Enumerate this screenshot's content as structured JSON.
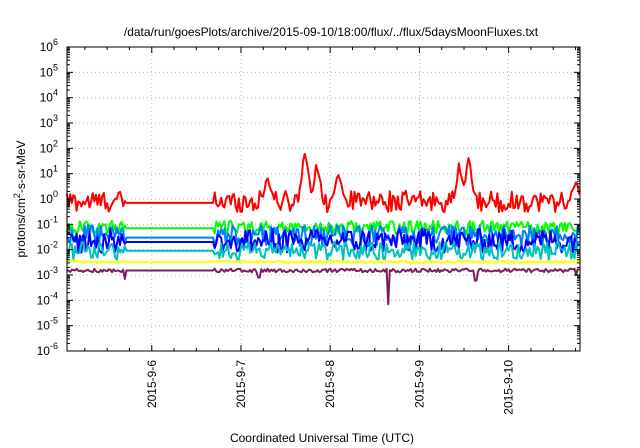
{
  "chart_data": {
    "type": "line",
    "title": "/data/run/goesPlots/archive/2015-09-10/18:00/flux/../flux/5daysMoonFluxes.txt",
    "xlabel": "Coordinated Universal Time (UTC)",
    "ylabel": {
      "base": "protons/cm",
      "sup": "2",
      "rest": "-s-sr-MeV"
    },
    "yscale": "log",
    "ylim_exponents": [
      -6,
      6
    ],
    "yticks": [
      {
        "base": "10",
        "exp": "-6"
      },
      {
        "base": "10",
        "exp": "-5"
      },
      {
        "base": "10",
        "exp": "-4"
      },
      {
        "base": "10",
        "exp": "-3"
      },
      {
        "base": "10",
        "exp": "-2"
      },
      {
        "base": "10",
        "exp": "-1"
      },
      {
        "base": "10",
        "exp": "0"
      },
      {
        "base": "10",
        "exp": "1"
      },
      {
        "base": "10",
        "exp": "2"
      },
      {
        "base": "10",
        "exp": "3"
      },
      {
        "base": "10",
        "exp": "4"
      },
      {
        "base": "10",
        "exp": "5"
      },
      {
        "base": "10",
        "exp": "6"
      }
    ],
    "xlim_days": [
      5.05,
      10.8
    ],
    "xticks": [
      {
        "label": "2015-9-6",
        "day": 6
      },
      {
        "label": "2015-9-7",
        "day": 7
      },
      {
        "label": "2015-9-8",
        "day": 8
      },
      {
        "label": "2015-9-9",
        "day": 9
      },
      {
        "label": "2015-9-10",
        "day": 10
      }
    ],
    "grid": true,
    "gap_days": [
      5.7,
      6.7
    ],
    "series": [
      {
        "color": "#ff0000",
        "level": 0.8,
        "noise": 0.7,
        "gap_level": 0.7,
        "spikes": [
          [
            6.25,
            1.0
          ],
          [
            7.3,
            6.0
          ],
          [
            7.72,
            70
          ],
          [
            7.85,
            18
          ],
          [
            8.1,
            10
          ],
          [
            9.45,
            20
          ],
          [
            9.55,
            30
          ],
          [
            10.75,
            3.5
          ]
        ]
      },
      {
        "color": "#00ff00",
        "level": 0.075,
        "noise": 0.45,
        "gap_level": 0.07,
        "spikes": []
      },
      {
        "color": "#0080ff",
        "level": 0.035,
        "noise": 0.7,
        "gap_level": 0.03,
        "spikes": []
      },
      {
        "color": "#0000ff",
        "level": 0.022,
        "noise": 0.8,
        "gap_level": 0.02,
        "spikes": []
      },
      {
        "color": "#00c0c0",
        "level": 0.009,
        "noise": 0.6,
        "gap_level": 0.009,
        "spikes": []
      },
      {
        "color": "#ffff00",
        "level": 0.0033,
        "noise": 0.08,
        "gap_level": 0.0033,
        "spikes": []
      },
      {
        "color": "#7a1f5c",
        "level": 0.0015,
        "noise": 0.12,
        "gap_level": 0.0015,
        "dips": [
          [
            8.65,
            7e-05
          ],
          [
            9.63,
            0.0006
          ],
          [
            7.2,
            0.0008
          ],
          [
            5.7,
            0.0007
          ],
          [
            10.75,
            0.001
          ]
        ]
      }
    ]
  }
}
